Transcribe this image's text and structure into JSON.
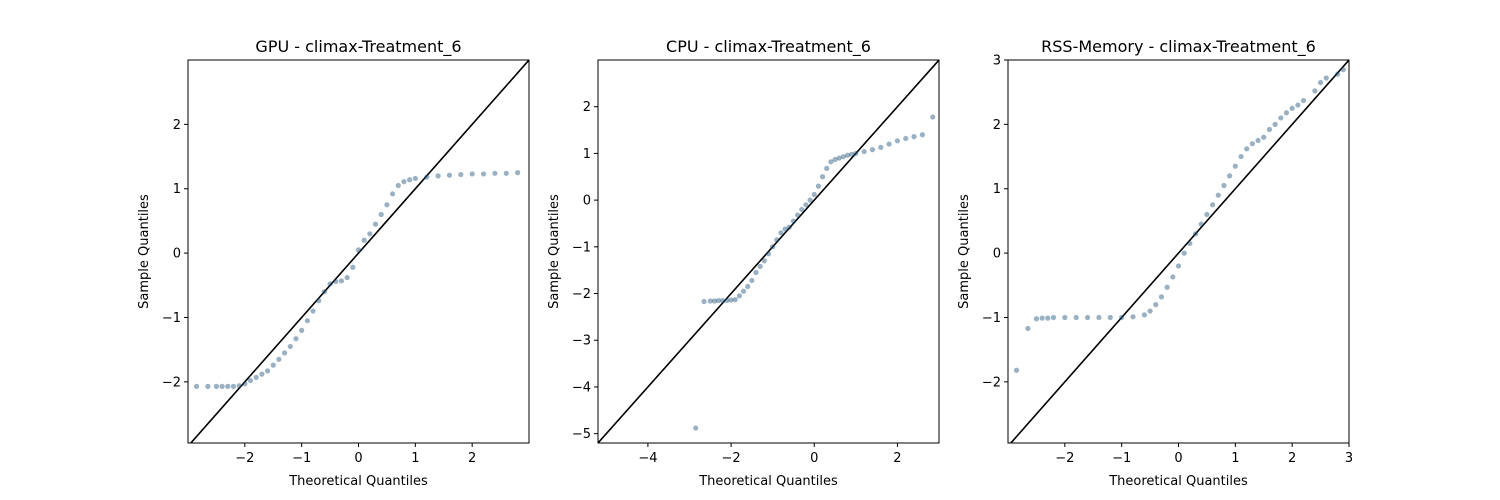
{
  "chart_data": [
    {
      "type": "scatter",
      "title": "GPU - climax-Treatment_6",
      "xlabel": "Theoretical Quantiles",
      "ylabel": "Sample Quantiles",
      "xlim": [
        -3.0,
        3.0
      ],
      "ylim": [
        -2.95,
        3.0
      ],
      "xticks": [
        -2,
        -1,
        0,
        1,
        2
      ],
      "yticks": [
        -2,
        -1,
        0,
        1,
        2
      ],
      "reference_line": {
        "slope": 1,
        "intercept": 0
      },
      "points": [
        [
          -2.85,
          -2.07
        ],
        [
          -2.65,
          -2.07
        ],
        [
          -2.5,
          -2.07
        ],
        [
          -2.4,
          -2.07
        ],
        [
          -2.3,
          -2.07
        ],
        [
          -2.2,
          -2.07
        ],
        [
          -2.1,
          -2.06
        ],
        [
          -2.0,
          -2.03
        ],
        [
          -1.9,
          -1.98
        ],
        [
          -1.8,
          -1.93
        ],
        [
          -1.7,
          -1.88
        ],
        [
          -1.6,
          -1.83
        ],
        [
          -1.5,
          -1.74
        ],
        [
          -1.4,
          -1.65
        ],
        [
          -1.3,
          -1.55
        ],
        [
          -1.2,
          -1.45
        ],
        [
          -1.1,
          -1.33
        ],
        [
          -1.0,
          -1.2
        ],
        [
          -0.9,
          -1.05
        ],
        [
          -0.8,
          -0.9
        ],
        [
          -0.7,
          -0.74
        ],
        [
          -0.6,
          -0.6
        ],
        [
          -0.5,
          -0.48
        ],
        [
          -0.4,
          -0.44
        ],
        [
          -0.3,
          -0.43
        ],
        [
          -0.2,
          -0.38
        ],
        [
          -0.1,
          -0.22
        ],
        [
          0.0,
          0.05
        ],
        [
          0.1,
          0.2
        ],
        [
          0.2,
          0.3
        ],
        [
          0.3,
          0.45
        ],
        [
          0.4,
          0.6
        ],
        [
          0.5,
          0.75
        ],
        [
          0.6,
          0.92
        ],
        [
          0.7,
          1.05
        ],
        [
          0.8,
          1.11
        ],
        [
          0.9,
          1.14
        ],
        [
          1.0,
          1.16
        ],
        [
          1.2,
          1.18
        ],
        [
          1.4,
          1.2
        ],
        [
          1.6,
          1.21
        ],
        [
          1.8,
          1.22
        ],
        [
          2.0,
          1.23
        ],
        [
          2.2,
          1.23
        ],
        [
          2.4,
          1.24
        ],
        [
          2.6,
          1.24
        ],
        [
          2.8,
          1.25
        ]
      ]
    },
    {
      "type": "scatter",
      "title": "CPU - climax-Treatment_6",
      "xlabel": "Theoretical Quantiles",
      "ylabel": "Sample Quantiles",
      "xlim": [
        -5.2,
        3.0
      ],
      "ylim": [
        -5.2,
        3.0
      ],
      "xticks": [
        -4,
        -2,
        0,
        2
      ],
      "yticks": [
        -5,
        -4,
        -3,
        -2,
        -1,
        0,
        1,
        2
      ],
      "reference_line": {
        "slope": 1,
        "intercept": 0
      },
      "points": [
        [
          -2.85,
          -4.88
        ],
        [
          -2.65,
          -2.17
        ],
        [
          -2.5,
          -2.16
        ],
        [
          -2.4,
          -2.16
        ],
        [
          -2.3,
          -2.15
        ],
        [
          -2.2,
          -2.15
        ],
        [
          -2.1,
          -2.15
        ],
        [
          -2.0,
          -2.14
        ],
        [
          -1.9,
          -2.13
        ],
        [
          -1.8,
          -2.05
        ],
        [
          -1.7,
          -1.95
        ],
        [
          -1.6,
          -1.85
        ],
        [
          -1.5,
          -1.72
        ],
        [
          -1.4,
          -1.55
        ],
        [
          -1.3,
          -1.42
        ],
        [
          -1.2,
          -1.3
        ],
        [
          -1.1,
          -1.15
        ],
        [
          -1.0,
          -1.0
        ],
        [
          -0.9,
          -0.85
        ],
        [
          -0.8,
          -0.7
        ],
        [
          -0.7,
          -0.62
        ],
        [
          -0.6,
          -0.58
        ],
        [
          -0.5,
          -0.45
        ],
        [
          -0.4,
          -0.32
        ],
        [
          -0.3,
          -0.2
        ],
        [
          -0.2,
          -0.1
        ],
        [
          -0.1,
          0.0
        ],
        [
          0.0,
          0.12
        ],
        [
          0.1,
          0.3
        ],
        [
          0.2,
          0.5
        ],
        [
          0.3,
          0.68
        ],
        [
          0.4,
          0.82
        ],
        [
          0.5,
          0.87
        ],
        [
          0.6,
          0.9
        ],
        [
          0.7,
          0.93
        ],
        [
          0.8,
          0.96
        ],
        [
          0.9,
          0.98
        ],
        [
          1.0,
          1.0
        ],
        [
          1.2,
          1.04
        ],
        [
          1.4,
          1.08
        ],
        [
          1.6,
          1.13
        ],
        [
          1.8,
          1.2
        ],
        [
          2.0,
          1.27
        ],
        [
          2.2,
          1.32
        ],
        [
          2.4,
          1.36
        ],
        [
          2.6,
          1.4
        ],
        [
          2.85,
          1.78
        ]
      ]
    },
    {
      "type": "scatter",
      "title": "RSS-Memory - climax-Treatment_6",
      "xlabel": "Theoretical Quantiles",
      "ylabel": "Sample Quantiles",
      "xlim": [
        -3.0,
        3.0
      ],
      "ylim": [
        -2.95,
        3.0
      ],
      "xticks": [
        -2,
        -1,
        0,
        1,
        2,
        3
      ],
      "yticks": [
        -2,
        -1,
        0,
        1,
        2,
        3
      ],
      "reference_line": {
        "slope": 1,
        "intercept": 0
      },
      "points": [
        [
          -2.85,
          -1.82
        ],
        [
          -2.65,
          -1.17
        ],
        [
          -2.5,
          -1.02
        ],
        [
          -2.4,
          -1.01
        ],
        [
          -2.3,
          -1.01
        ],
        [
          -2.2,
          -1.0
        ],
        [
          -2.0,
          -1.0
        ],
        [
          -1.8,
          -1.0
        ],
        [
          -1.6,
          -1.0
        ],
        [
          -1.4,
          -1.0
        ],
        [
          -1.2,
          -1.0
        ],
        [
          -1.0,
          -1.0
        ],
        [
          -0.8,
          -0.99
        ],
        [
          -0.6,
          -0.96
        ],
        [
          -0.5,
          -0.9
        ],
        [
          -0.4,
          -0.8
        ],
        [
          -0.3,
          -0.68
        ],
        [
          -0.2,
          -0.53
        ],
        [
          -0.1,
          -0.37
        ],
        [
          0.0,
          -0.2
        ],
        [
          0.1,
          0.0
        ],
        [
          0.2,
          0.15
        ],
        [
          0.3,
          0.3
        ],
        [
          0.4,
          0.45
        ],
        [
          0.5,
          0.6
        ],
        [
          0.6,
          0.75
        ],
        [
          0.7,
          0.9
        ],
        [
          0.8,
          1.05
        ],
        [
          0.9,
          1.2
        ],
        [
          1.0,
          1.35
        ],
        [
          1.1,
          1.5
        ],
        [
          1.2,
          1.62
        ],
        [
          1.3,
          1.7
        ],
        [
          1.4,
          1.75
        ],
        [
          1.5,
          1.8
        ],
        [
          1.6,
          1.92
        ],
        [
          1.7,
          2.0
        ],
        [
          1.8,
          2.1
        ],
        [
          1.9,
          2.18
        ],
        [
          2.0,
          2.25
        ],
        [
          2.1,
          2.3
        ],
        [
          2.2,
          2.37
        ],
        [
          2.4,
          2.52
        ],
        [
          2.5,
          2.65
        ],
        [
          2.6,
          2.72
        ],
        [
          2.8,
          2.78
        ],
        [
          2.9,
          2.85
        ]
      ]
    }
  ]
}
